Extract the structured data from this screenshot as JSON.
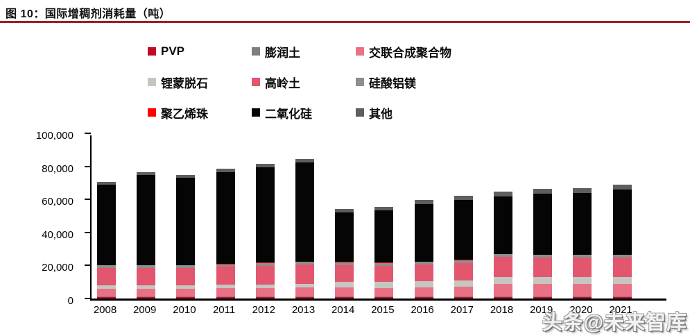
{
  "header": {
    "title": "图 10：国际增稠剂消耗量（吨）",
    "rule_color": "#9e1b20"
  },
  "watermark": {
    "text": "头条@未来智库"
  },
  "chart_data": {
    "type": "bar",
    "stacked": true,
    "title": "国际增稠剂消耗量（吨）",
    "legend_position": "top",
    "grid": false,
    "ylim": [
      0,
      100000
    ],
    "y_ticks": [
      "0",
      "20,000",
      "40,000",
      "60,000",
      "80,000",
      "100,000"
    ],
    "categories": [
      "2008",
      "2009",
      "2010",
      "2011",
      "2012",
      "2013",
      "2014",
      "2015",
      "2016",
      "2017",
      "2018",
      "2019",
      "2020",
      "2021"
    ],
    "series": [
      {
        "name": "PVP",
        "key": "pvp",
        "color": "#bf0a27",
        "values": [
          700,
          700,
          700,
          700,
          700,
          700,
          800,
          800,
          800,
          800,
          900,
          900,
          900,
          900
        ]
      },
      {
        "name": "膨润土",
        "key": "bentonite",
        "color": "#7f7f7f",
        "values": [
          400,
          400,
          400,
          400,
          400,
          400,
          400,
          400,
          400,
          400,
          500,
          500,
          500,
          500
        ]
      },
      {
        "name": "交联合成聚合物",
        "key": "crosslinked-polymer",
        "color": "#e87185",
        "values": [
          4800,
          4900,
          4900,
          5100,
          5300,
          5500,
          5500,
          5300,
          5600,
          5900,
          7500,
          7300,
          7300,
          7300
        ]
      },
      {
        "name": "锂蒙脱石",
        "key": "hectorite",
        "color": "#c6c6c0",
        "values": [
          1900,
          2000,
          2100,
          2100,
          2200,
          2300,
          3600,
          3500,
          3600,
          3700,
          4300,
          4300,
          4200,
          4200
        ]
      },
      {
        "name": "高岭土",
        "key": "kaolin",
        "color": "#e2566e",
        "values": [
          10700,
          10700,
          10600,
          11000,
          11300,
          11800,
          9900,
          9800,
          10200,
          10600,
          11900,
          11700,
          11800,
          11800
        ]
      },
      {
        "name": "硅酸铝镁",
        "key": "mag-al-silicate",
        "color": "#8e8e8e",
        "values": [
          1500,
          1500,
          1500,
          1500,
          1600,
          1600,
          1700,
          1700,
          1700,
          1800,
          1800,
          1800,
          1800,
          1800
        ]
      },
      {
        "name": "聚乙烯珠",
        "key": "pe-beads",
        "color": "#fe0000",
        "values": [
          200,
          200,
          200,
          200,
          200,
          200,
          200,
          200,
          200,
          200,
          200,
          200,
          200,
          200
        ]
      },
      {
        "name": "二氧化硅",
        "key": "silica",
        "color": "#050505",
        "values": [
          48800,
          54300,
          52800,
          55700,
          57800,
          60000,
          30100,
          31900,
          34500,
          36400,
          34900,
          36800,
          37100,
          39400
        ]
      },
      {
        "name": "其他",
        "key": "other",
        "color": "#5e5e5e",
        "values": [
          1500,
          1800,
          1800,
          1800,
          2000,
          2000,
          2100,
          2100,
          2500,
          2500,
          2800,
          3000,
          3000,
          3000
        ]
      }
    ]
  }
}
